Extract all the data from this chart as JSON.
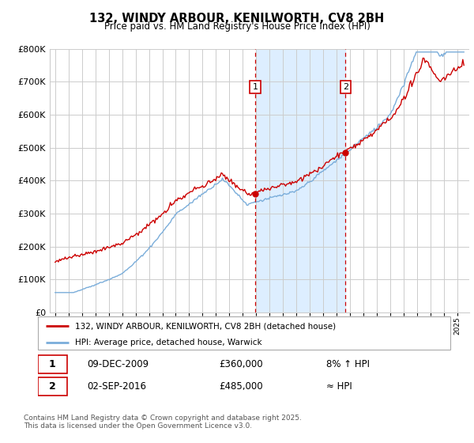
{
  "title": "132, WINDY ARBOUR, KENILWORTH, CV8 2BH",
  "subtitle": "Price paid vs. HM Land Registry's House Price Index (HPI)",
  "legend_label_red": "132, WINDY ARBOUR, KENILWORTH, CV8 2BH (detached house)",
  "legend_label_blue": "HPI: Average price, detached house, Warwick",
  "sale1_date": "09-DEC-2009",
  "sale1_price": 360000,
  "sale1_label": "8% ↑ HPI",
  "sale2_date": "02-SEP-2016",
  "sale2_price": 485000,
  "sale2_label": "≈ HPI",
  "footnote": "Contains HM Land Registry data © Crown copyright and database right 2025.\nThis data is licensed under the Open Government Licence v3.0.",
  "ylim": [
    0,
    800000
  ],
  "red_color": "#cc0000",
  "blue_color": "#7aadda",
  "shade_color": "#ddeeff",
  "vline_color": "#cc0000",
  "grid_color": "#cccccc",
  "sale1_x": 2009.92,
  "sale2_x": 2016.67,
  "xmin": 1994.6,
  "xmax": 2025.9
}
